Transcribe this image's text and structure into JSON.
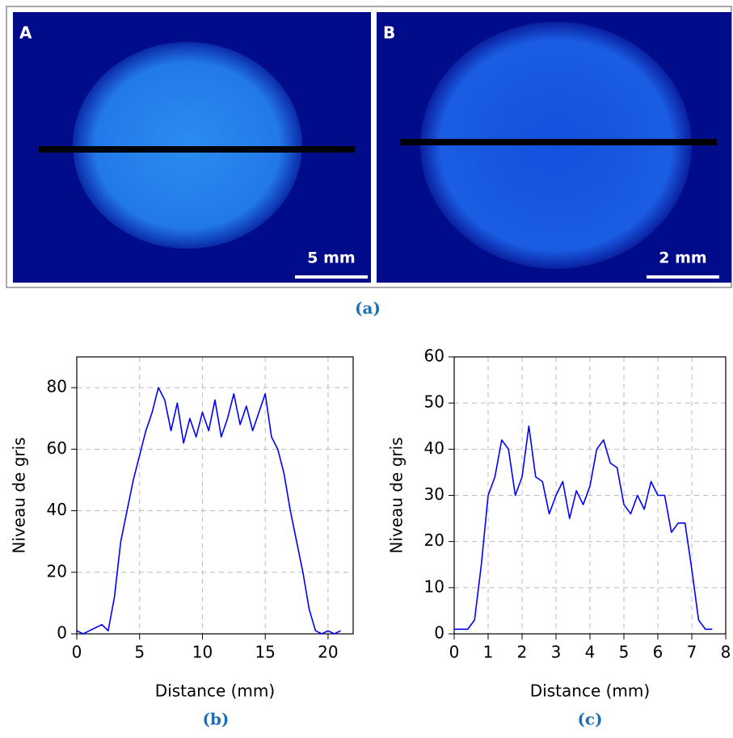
{
  "figure": {
    "panels": [
      {
        "letter": "A",
        "scale": "5 mm"
      },
      {
        "letter": "B",
        "scale": "2 mm"
      }
    ],
    "caption": "(a)"
  },
  "chart_data": [
    {
      "type": "line",
      "caption": "(b)",
      "xlabel": "Distance (mm)",
      "ylabel": "Niveau de gris",
      "color": "#0000ff",
      "grid": true,
      "xlim": [
        0,
        22
      ],
      "ylim": [
        0,
        90
      ],
      "xticks": [
        0,
        5,
        10,
        15,
        20
      ],
      "yticks": [
        0,
        20,
        40,
        60,
        80
      ],
      "x": [
        0,
        0.5,
        1,
        1.5,
        2,
        2.5,
        3,
        3.5,
        4,
        4.5,
        5,
        5.5,
        6,
        6.5,
        7,
        7.5,
        8,
        8.5,
        9,
        9.5,
        10,
        10.5,
        11,
        11.5,
        12,
        12.5,
        13,
        13.5,
        14,
        14.5,
        15,
        15.5,
        16,
        16.5,
        17,
        17.5,
        18,
        18.5,
        19,
        19.5,
        20,
        20.5,
        21
      ],
      "values": [
        1,
        0,
        1,
        2,
        3,
        1,
        12,
        30,
        40,
        50,
        58,
        66,
        72,
        80,
        76,
        66,
        75,
        62,
        70,
        64,
        72,
        66,
        76,
        64,
        70,
        78,
        68,
        74,
        66,
        72,
        78,
        64,
        60,
        52,
        40,
        30,
        20,
        8,
        1,
        0,
        1,
        0,
        1
      ]
    },
    {
      "type": "line",
      "caption": "(c)",
      "xlabel": "Distance (mm)",
      "ylabel": "Niveau de gris",
      "color": "#0000ff",
      "grid": true,
      "xlim": [
        0,
        8
      ],
      "ylim": [
        0,
        60
      ],
      "xticks": [
        0,
        1,
        2,
        3,
        4,
        5,
        6,
        7,
        8
      ],
      "yticks": [
        0,
        10,
        20,
        30,
        40,
        50,
        60
      ],
      "x": [
        0,
        0.2,
        0.4,
        0.6,
        0.8,
        1.0,
        1.2,
        1.4,
        1.6,
        1.8,
        2.0,
        2.2,
        2.4,
        2.6,
        2.8,
        3.0,
        3.2,
        3.4,
        3.6,
        3.8,
        4.0,
        4.2,
        4.4,
        4.6,
        4.8,
        5.0,
        5.2,
        5.4,
        5.6,
        5.8,
        6.0,
        6.2,
        6.4,
        6.6,
        6.8,
        7.0,
        7.2,
        7.4,
        7.6
      ],
      "values": [
        1,
        1,
        1,
        3,
        15,
        30,
        34,
        42,
        40,
        30,
        34,
        45,
        34,
        33,
        26,
        30,
        33,
        25,
        31,
        28,
        32,
        40,
        42,
        37,
        36,
        28,
        26,
        30,
        27,
        33,
        30,
        30,
        22,
        24,
        24,
        14,
        3,
        1,
        1
      ]
    }
  ]
}
